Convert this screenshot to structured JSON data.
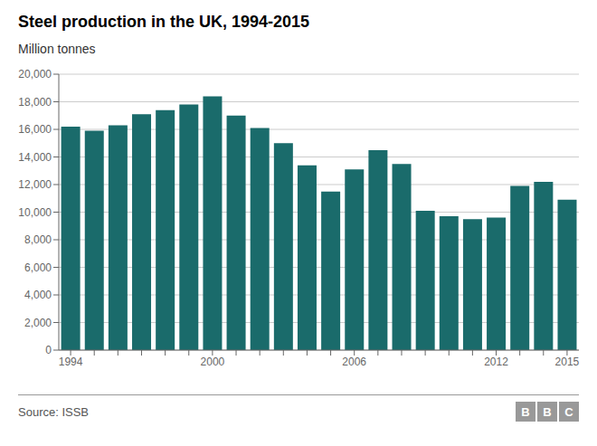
{
  "chart_data": {
    "type": "bar",
    "title": "Steel production in the UK, 1994-2015",
    "subtitle": "Million tonnes",
    "source": "Source: ISSB",
    "logo": [
      "B",
      "B",
      "C"
    ],
    "categories": [
      "1994",
      null,
      null,
      null,
      null,
      null,
      "2000",
      null,
      null,
      null,
      null,
      null,
      "2006",
      null,
      null,
      null,
      null,
      null,
      "2012",
      null,
      null,
      "2015"
    ],
    "values": [
      16200,
      15900,
      16300,
      17100,
      17400,
      17800,
      18400,
      17000,
      16100,
      15000,
      13400,
      11500,
      13100,
      14500,
      13500,
      10100,
      9700,
      9500,
      9600,
      11900,
      12200,
      10900
    ],
    "color": "#1a6b6b",
    "ylim": [
      0,
      20000
    ],
    "yticks": [
      0,
      {
        "value": 2000,
        "label": "2,000"
      },
      {
        "value": 4000,
        "label": "4,000"
      },
      {
        "value": 6000,
        "label": "6,000"
      },
      {
        "value": 8000,
        "label": "8,000"
      },
      {
        "value": 10000,
        "label": "10,000"
      },
      {
        "value": 12000,
        "label": "12,000"
      },
      {
        "value": 14000,
        "label": "14,000"
      },
      {
        "value": 16000,
        "label": "16,000"
      },
      {
        "value": 18000,
        "label": "18,000"
      },
      {
        "value": 20000,
        "label": "20,000"
      }
    ],
    "grid": true
  }
}
